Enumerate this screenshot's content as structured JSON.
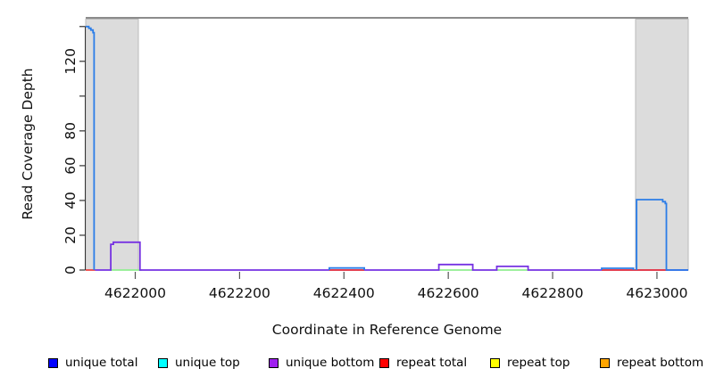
{
  "chart_data": {
    "type": "line",
    "title": "",
    "xlabel": "Coordinate in Reference Genome",
    "ylabel": "Read Coverage Depth",
    "xlim": [
      4621905,
      4623060
    ],
    "ylim": [
      0,
      145
    ],
    "grid": false,
    "legend_position": "bottom",
    "x_ticks": [
      {
        "v": 4622000,
        "label": "4622000"
      },
      {
        "v": 4622200,
        "label": "4622200"
      },
      {
        "v": 4622400,
        "label": "4622400"
      },
      {
        "v": 4622600,
        "label": "4622600"
      },
      {
        "v": 4622800,
        "label": "4622800"
      },
      {
        "v": 4623000,
        "label": "4623000"
      }
    ],
    "y_ticks": [
      {
        "v": 0,
        "label": "0"
      },
      {
        "v": 20,
        "label": "20"
      },
      {
        "v": 40,
        "label": "40"
      },
      {
        "v": 60,
        "label": "60"
      },
      {
        "v": 80,
        "label": "80"
      },
      {
        "v": 100,
        "label": ""
      },
      {
        "v": 120,
        "label": "120"
      },
      {
        "v": 140,
        "label": ""
      }
    ],
    "shaded_regions": [
      {
        "x0": 4621905,
        "x1": 4622006,
        "color": "#DCDCDC",
        "edge": "#BBBBBB"
      },
      {
        "x0": 4622959,
        "x1": 4623060,
        "color": "#DCDCDC",
        "edge": "#BBBBBB"
      }
    ],
    "top_rule": {
      "y": 145,
      "color": "#8C8C8C",
      "width": 2
    },
    "axis_color": "#333333",
    "tick_color": "#555555",
    "series": [
      {
        "name": "baseline-green",
        "color": "#90EE90",
        "width": 1.7,
        "lines": [
          [
            [
              4621953,
              0
            ],
            [
              4622012,
              0
            ]
          ],
          [
            [
              4622582,
              0
            ],
            [
              4622647,
              0
            ]
          ],
          [
            [
              4622693,
              0
            ],
            [
              4622753,
              0
            ]
          ]
        ]
      },
      {
        "name": "unique-bottom",
        "color": "#7632E2",
        "width": 1.8,
        "lines": [
          [
            [
              4621923,
              0
            ],
            [
              4621953,
              0
            ],
            [
              4621953,
              14.8
            ],
            [
              4621958,
              14.8
            ],
            [
              4621958,
              16
            ],
            [
              4622009,
              16
            ],
            [
              4622009,
              0
            ],
            [
              4622582,
              0
            ],
            [
              4622582,
              3.2
            ],
            [
              4622647,
              3.2
            ],
            [
              4622647,
              0
            ],
            [
              4622693,
              0
            ],
            [
              4622693,
              2.1
            ],
            [
              4622753,
              2.1
            ],
            [
              4622753,
              0
            ],
            [
              4623060,
              0
            ]
          ]
        ]
      },
      {
        "name": "repeat-total",
        "color": "#EE3B3B",
        "width": 1.7,
        "lines": [
          [
            [
              4621905,
              0
            ],
            [
              4621923,
              0
            ]
          ],
          [
            [
              4622372,
              0
            ],
            [
              4622439,
              0
            ]
          ],
          [
            [
              4622894,
              0
            ],
            [
              4623021,
              0
            ]
          ]
        ]
      },
      {
        "name": "unique-total",
        "color": "#2B7DE8",
        "width": 1.8,
        "lines": [
          [
            [
              4621905,
              140
            ],
            [
              4621911,
              140
            ],
            [
              4621911,
              139
            ],
            [
              4621915,
              139
            ],
            [
              4621915,
              138
            ],
            [
              4621919,
              138
            ],
            [
              4621919,
              136.5
            ],
            [
              4621921,
              136.5
            ],
            [
              4621921,
              0
            ]
          ],
          [
            [
              4622372,
              0
            ],
            [
              4622372,
              1.2
            ],
            [
              4622439,
              1.2
            ],
            [
              4622439,
              0
            ]
          ],
          [
            [
              4622894,
              0
            ],
            [
              4622894,
              1
            ],
            [
              4622955,
              1
            ],
            [
              4622955,
              0
            ]
          ],
          [
            [
              4622961,
              0
            ],
            [
              4622961,
              40.5
            ],
            [
              4623011,
              40.5
            ],
            [
              4623011,
              39.3
            ],
            [
              4623016,
              39.3
            ],
            [
              4623016,
              38.2
            ],
            [
              4623018,
              38.2
            ],
            [
              4623018,
              0
            ],
            [
              4623060,
              0
            ]
          ]
        ]
      }
    ],
    "legend": [
      {
        "label": "unique total",
        "color": "#0000FF"
      },
      {
        "label": "unique top",
        "color": "#00FFFF"
      },
      {
        "label": "unique bottom",
        "color": "#A020F0"
      },
      {
        "label": "repeat total",
        "color": "#FF0000"
      },
      {
        "label": "repeat top",
        "color": "#FFFF00"
      },
      {
        "label": "repeat bottom",
        "color": "#FFA500"
      }
    ]
  }
}
